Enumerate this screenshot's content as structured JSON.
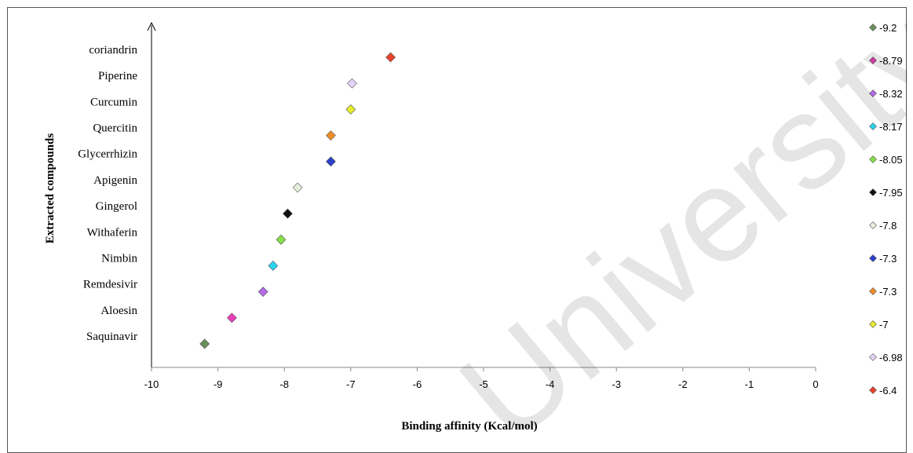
{
  "chart_data": {
    "type": "scatter",
    "title": "",
    "xlabel": "Binding affinity (Kcal/mol)",
    "ylabel": "Extracted compounds",
    "xlim": [
      -10,
      0
    ],
    "xticks": [
      "-10",
      "-9",
      "-8",
      "-7",
      "-6",
      "-5",
      "-4",
      "-3",
      "-2",
      "-1",
      "0"
    ],
    "grid": false,
    "legend_position": "right",
    "points": [
      {
        "compound": "Saquinavir",
        "value": -9.2,
        "legend": "-9.2",
        "color": "#6a8f5a"
      },
      {
        "compound": "Aloesin",
        "value": -8.79,
        "legend": "-8.79",
        "color": "#e83fb8"
      },
      {
        "compound": "Remdesivir",
        "value": -8.32,
        "legend": "-8.32",
        "color": "#b46ce8"
      },
      {
        "compound": "Nimbin",
        "value": -8.17,
        "legend": "-8.17",
        "color": "#2ad4f0"
      },
      {
        "compound": "Withaferin",
        "value": -8.05,
        "legend": "-8.05",
        "color": "#86e04c"
      },
      {
        "compound": "Gingerol",
        "value": -7.95,
        "legend": "-7.95",
        "color": "#111111"
      },
      {
        "compound": "Apigenin",
        "value": -7.8,
        "legend": "-7.8",
        "color": "#e6eedc"
      },
      {
        "compound": "Glycerrhizin",
        "value": -7.3,
        "legend": "-7.3",
        "color": "#2c3fc8"
      },
      {
        "compound": "Quercitin",
        "value": -7.3,
        "legend": "-7.3",
        "color": "#ee8c2a"
      },
      {
        "compound": "Curcumin",
        "value": -7,
        "legend": "-7",
        "color": "#e8ee2e"
      },
      {
        "compound": "Piperine",
        "value": -6.98,
        "legend": "-6.98",
        "color": "#e6d2f6"
      },
      {
        "compound": "coriandrin",
        "value": -6.4,
        "legend": "-6.4",
        "color": "#e8432a"
      }
    ]
  },
  "watermark": {
    "text": "University"
  }
}
